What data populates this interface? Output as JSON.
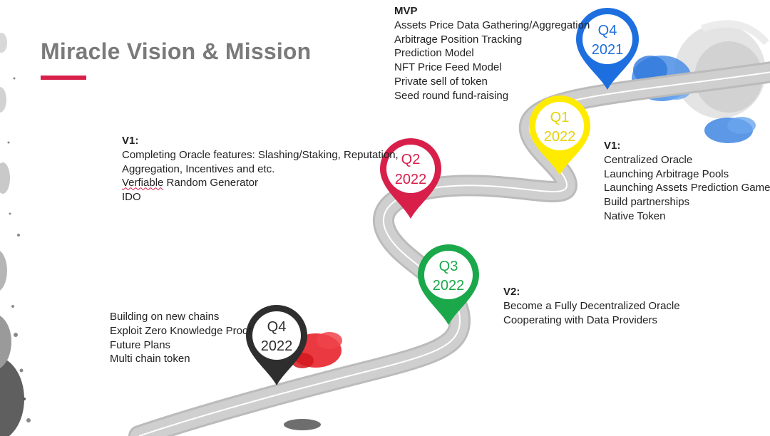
{
  "title": "Miracle Vision & Mission",
  "colors": {
    "accent": "#d81f4a",
    "q4_2021": "#1d6fe0",
    "q1_2022": "#ffeb00",
    "q2_2022": "#d81f4a",
    "q3_2022": "#1aa84a",
    "q4_2022": "#2e2e2e"
  },
  "milestones": [
    {
      "quarter": "Q4",
      "year": "2021"
    },
    {
      "quarter": "Q1",
      "year": "2022"
    },
    {
      "quarter": "Q2",
      "year": "2022"
    },
    {
      "quarter": "Q3",
      "year": "2022"
    },
    {
      "quarter": "Q4",
      "year": "2022"
    }
  ],
  "mvp": {
    "heading": "MVP",
    "items": [
      "Assets Price Data Gathering/Aggregation",
      "Arbitrage Position Tracking",
      "Prediction Model",
      "NFT Price Feed Model",
      "Private sell of token",
      "Seed round fund-raising"
    ]
  },
  "v1_q1": {
    "heading": "V1:",
    "items": [
      "Centralized Oracle",
      "Launching Arbitrage Pools",
      "Launching Assets Prediction Game",
      "Build partnerships",
      "Native Token"
    ]
  },
  "v1_q2": {
    "heading": "V1:",
    "items": [
      "Completing Oracle features: Slashing/Staking, Reputation,",
      "Aggregation, Incentives and etc.",
      "Verfiable Random Generator",
      "IDO"
    ]
  },
  "v2_q3": {
    "heading": "V2:",
    "items": [
      "Become a Fully Decentralized Oracle",
      "Cooperating with Data Providers"
    ]
  },
  "future_q4": {
    "items": [
      "Building on new chains",
      "Exploit Zero Knowledge Proof",
      "Future Plans",
      "Multi chain token"
    ]
  }
}
